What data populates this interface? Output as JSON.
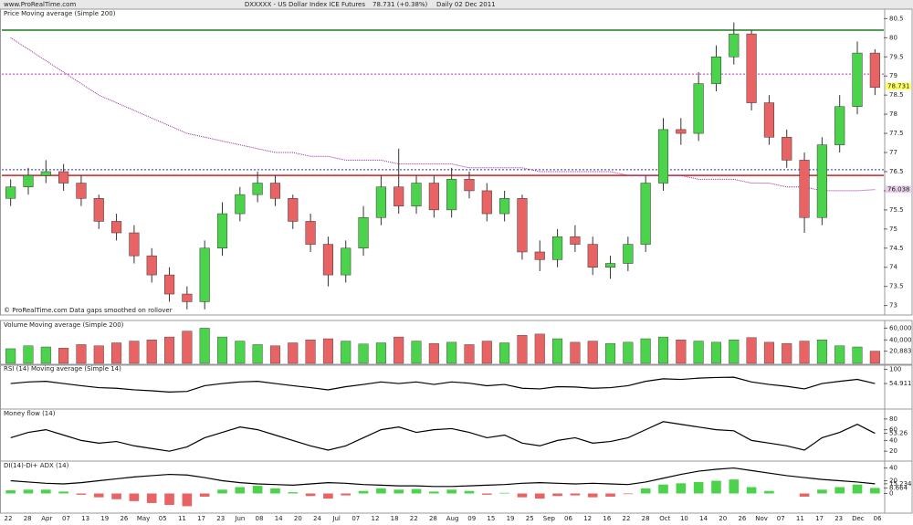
{
  "header": {
    "site": "www.ProRealTime.com",
    "title": "DXXXXX - US Dollar Index ICE Futures",
    "change": "78.731 (+0.38%)",
    "period": "Daily  02 Dec 2011"
  },
  "chart_data": [
    {
      "type": "candlestick",
      "label": "Price",
      "indicator": "Moving average (Simple 200)",
      "note": "© ProRealTime.com  Data gaps smoothed on rollover",
      "open": [
        75.8,
        76.1,
        76.4,
        76.5,
        76.2,
        75.8,
        75.2,
        74.9,
        74.3,
        73.8,
        73.3,
        73.1,
        74.5,
        75.4,
        75.9,
        76.2,
        75.8,
        75.2,
        74.6,
        73.8,
        74.5,
        75.3,
        76.1,
        75.6,
        76.2,
        75.5,
        76.3,
        76.0,
        75.4,
        75.8,
        74.4,
        74.2,
        74.8,
        74.6,
        74.0,
        74.1,
        74.6,
        76.2,
        77.6,
        77.5,
        78.8,
        79.5,
        80.1,
        78.3,
        77.4,
        76.8,
        75.3,
        77.2,
        78.2,
        79.6
      ],
      "high": [
        76.3,
        76.6,
        76.8,
        76.7,
        76.4,
        75.9,
        75.4,
        75.1,
        74.5,
        74.0,
        73.5,
        74.7,
        75.7,
        76.1,
        76.5,
        76.4,
        75.9,
        75.4,
        74.8,
        74.7,
        75.6,
        76.4,
        77.1,
        76.4,
        76.4,
        76.6,
        76.5,
        76.2,
        76.0,
        75.9,
        74.7,
        75.0,
        75.1,
        74.8,
        74.3,
        74.8,
        76.4,
        77.9,
        77.9,
        79.1,
        79.8,
        80.4,
        80.2,
        78.5,
        77.6,
        77.0,
        77.4,
        78.5,
        79.9,
        79.7
      ],
      "low": [
        75.6,
        75.9,
        76.2,
        76.0,
        75.6,
        75.0,
        74.7,
        74.1,
        73.6,
        73.1,
        72.9,
        72.9,
        74.3,
        75.2,
        75.7,
        75.6,
        75.0,
        74.4,
        73.5,
        73.6,
        74.3,
        75.1,
        75.4,
        75.4,
        75.3,
        75.3,
        75.8,
        75.2,
        75.2,
        74.2,
        73.9,
        74.0,
        74.4,
        73.8,
        73.7,
        73.9,
        74.4,
        76.0,
        77.2,
        77.3,
        78.6,
        79.3,
        78.1,
        77.2,
        76.6,
        74.9,
        75.1,
        77.0,
        78.0,
        78.5
      ],
      "close": [
        76.1,
        76.4,
        76.5,
        76.2,
        75.8,
        75.2,
        74.9,
        74.3,
        73.8,
        73.3,
        73.1,
        74.5,
        75.4,
        75.9,
        76.2,
        75.8,
        75.2,
        74.6,
        73.8,
        74.5,
        75.3,
        76.1,
        75.6,
        76.2,
        75.5,
        76.3,
        76.0,
        75.4,
        75.8,
        74.4,
        74.2,
        74.8,
        74.6,
        74.0,
        74.1,
        74.6,
        76.2,
        77.6,
        77.5,
        78.8,
        79.5,
        80.1,
        78.3,
        77.4,
        76.8,
        75.3,
        77.2,
        78.2,
        79.6,
        78.7
      ],
      "ma": [
        80.0,
        79.7,
        79.4,
        79.1,
        78.8,
        78.5,
        78.3,
        78.1,
        77.9,
        77.7,
        77.5,
        77.4,
        77.3,
        77.2,
        77.1,
        77.0,
        77.0,
        76.9,
        76.9,
        76.8,
        76.8,
        76.8,
        76.7,
        76.7,
        76.7,
        76.7,
        76.6,
        76.6,
        76.6,
        76.6,
        76.5,
        76.5,
        76.5,
        76.5,
        76.5,
        76.4,
        76.4,
        76.4,
        76.4,
        76.3,
        76.3,
        76.3,
        76.2,
        76.2,
        76.1,
        76.1,
        76.0,
        76.0,
        76.0,
        76.03
      ],
      "ma_color": "#9a2a9a",
      "up_color": "#4cd34c",
      "down_color": "#e86464",
      "last_price": 78.731,
      "last_ma": 76.038,
      "levels": [
        {
          "value": 80.2,
          "color": "#1e7a1e",
          "style": "solid"
        },
        {
          "value": 76.4,
          "color": "#d42020",
          "style": "solid"
        },
        {
          "value": 76.55,
          "color": "#3030c0",
          "style": "dotted"
        },
        {
          "value": 79.05,
          "color": "#c030c0",
          "style": "dotted"
        }
      ],
      "ylim": [
        72.8,
        80.7
      ],
      "yticks": [
        73,
        73.5,
        74,
        74.5,
        75,
        75.5,
        76,
        76.5,
        77,
        77.5,
        78,
        78.5,
        79,
        79.5,
        80,
        80.5
      ]
    },
    {
      "type": "volume",
      "label": "Volume",
      "indicator": "Moving average (Simple 200)",
      "values": [
        25000,
        30000,
        28000,
        26000,
        32000,
        30000,
        35000,
        38000,
        40000,
        45000,
        55000,
        60000,
        45000,
        38000,
        32000,
        30000,
        35000,
        40000,
        42000,
        38000,
        33000,
        35000,
        45000,
        38000,
        34000,
        36000,
        32000,
        38000,
        35000,
        48000,
        50000,
        42000,
        36000,
        38000,
        34000,
        36000,
        42000,
        45000,
        40000,
        38000,
        36000,
        40000,
        44000,
        36000,
        34000,
        38000,
        40000,
        30000,
        28000,
        20883
      ],
      "ylim": [
        0,
        70000
      ],
      "yticks": [
        {
          "value": 60000,
          "label": "60,000"
        },
        {
          "value": 40000,
          "label": "40,000"
        },
        {
          "value": 20883,
          "label": "20,883"
        }
      ]
    },
    {
      "type": "line",
      "label": "RSI (14)",
      "indicator": "Moving average (Simple 14)",
      "color": "#000000",
      "values": [
        55,
        60,
        62,
        55,
        48,
        42,
        40,
        35,
        32,
        28,
        30,
        48,
        55,
        60,
        62,
        55,
        48,
        42,
        35,
        45,
        52,
        60,
        55,
        60,
        52,
        60,
        56,
        48,
        52,
        40,
        38,
        45,
        44,
        40,
        42,
        48,
        62,
        70,
        68,
        72,
        74,
        75,
        60,
        52,
        46,
        38,
        55,
        62,
        68,
        54.911
      ],
      "ylim": [
        -20,
        110
      ],
      "yticks": [
        100,
        54.911
      ]
    },
    {
      "type": "line",
      "label": "Money flow (14)",
      "color": "#000000",
      "values": [
        45,
        55,
        60,
        50,
        40,
        35,
        38,
        30,
        25,
        20,
        28,
        45,
        55,
        65,
        60,
        50,
        40,
        30,
        22,
        30,
        45,
        60,
        65,
        55,
        60,
        62,
        55,
        45,
        50,
        35,
        30,
        40,
        45,
        35,
        38,
        45,
        60,
        75,
        70,
        65,
        60,
        58,
        40,
        35,
        30,
        22,
        45,
        55,
        70,
        53.26
      ],
      "ylim": [
        5,
        95
      ],
      "yticks": [
        80,
        60,
        53.26,
        40,
        20
      ]
    },
    {
      "type": "adx",
      "label": "DI(14)-Di+ ADX (14)",
      "color": "#000000",
      "up_color": "#4cd34c",
      "down_color": "#e86464",
      "values": [
        20,
        18,
        16,
        15,
        17,
        20,
        23,
        26,
        28,
        30,
        29,
        25,
        20,
        17,
        15,
        14,
        13,
        15,
        17,
        16,
        14,
        13,
        12,
        12,
        11,
        11,
        12,
        13,
        14,
        16,
        17,
        16,
        15,
        16,
        15,
        14,
        18,
        24,
        30,
        35,
        38,
        40,
        36,
        32,
        28,
        25,
        22,
        20,
        18,
        15.234
      ],
      "di_diff": [
        5,
        6,
        6,
        3,
        -2,
        -6,
        -9,
        -12,
        -15,
        -18,
        -20,
        -5,
        6,
        10,
        12,
        8,
        2,
        -4,
        -8,
        -3,
        4,
        8,
        6,
        7,
        3,
        6,
        4,
        -2,
        1,
        -6,
        -8,
        -4,
        -3,
        -6,
        -5,
        -1,
        8,
        14,
        16,
        18,
        20,
        22,
        10,
        4,
        0,
        -5,
        6,
        10,
        14,
        8.664
      ],
      "ylim": [
        -28,
        48
      ],
      "yticks": [
        40,
        20,
        15.234,
        8.664,
        0
      ]
    }
  ],
  "x_labels": [
    "22",
    "28",
    "Apr",
    "07",
    "13",
    "19",
    "26",
    "May",
    "05",
    "11",
    "17",
    "23",
    "Jun",
    "08",
    "14",
    "20",
    "24",
    "Jul",
    "07",
    "12",
    "18",
    "22",
    "28",
    "Aug",
    "09",
    "15",
    "19",
    "25",
    "Sep",
    "06",
    "12",
    "16",
    "22",
    "28",
    "Oct",
    "10",
    "14",
    "20",
    "26",
    "Nov",
    "07",
    "11",
    "17",
    "23",
    "Dec",
    "06"
  ]
}
